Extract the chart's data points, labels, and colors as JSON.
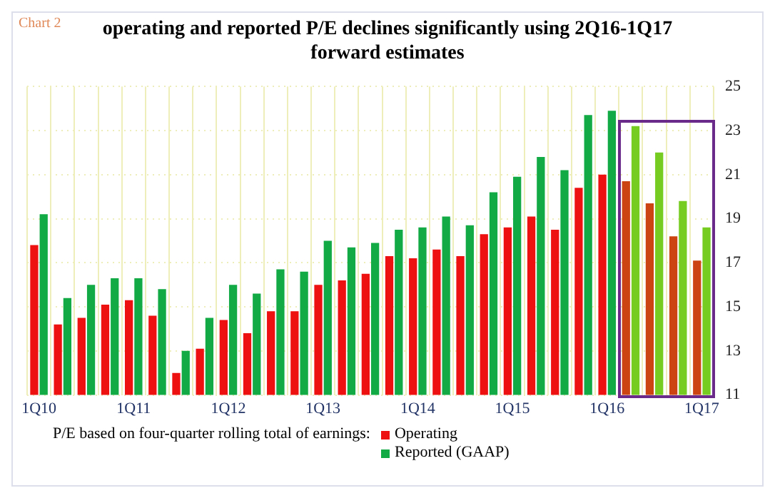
{
  "chart_data": {
    "type": "bar",
    "title": "operating and reported P/E declines significantly using 2Q16-1Q17 forward estimates",
    "annotations": [
      "Chart 2"
    ],
    "legend_title": "P/E based on four-quarter rolling total of earnings:",
    "categories": [
      "1Q10",
      null,
      null,
      null,
      "1Q11",
      null,
      null,
      null,
      "1Q12",
      null,
      null,
      null,
      "1Q13",
      null,
      null,
      null,
      "1Q14",
      null,
      null,
      null,
      "1Q15",
      null,
      null,
      null,
      "1Q16",
      null,
      null,
      null,
      "1Q17"
    ],
    "series": [
      {
        "name": "Operating",
        "color": "#ee1111",
        "colors": [
          "#ee1111",
          "#ee1111",
          "#ee1111",
          "#ee1111",
          "#ee1111",
          "#ee1111",
          "#ee1111",
          "#ee1111",
          "#ee1111",
          "#ee1111",
          "#ee1111",
          "#ee1111",
          "#ee1111",
          "#ee1111",
          "#ee1111",
          "#ee1111",
          "#ee1111",
          "#ee1111",
          "#ee1111",
          "#ee1111",
          "#ee1111",
          "#ee1111",
          "#ee1111",
          "#ee1111",
          "#ee1111",
          "#cc4411",
          "#cc4411",
          "#cc4411",
          "#cc4411"
        ],
        "values": [
          17.8,
          14.2,
          14.5,
          15.1,
          15.3,
          14.6,
          12.0,
          13.1,
          14.4,
          13.8,
          14.8,
          14.8,
          16.0,
          16.2,
          16.5,
          17.3,
          17.2,
          17.6,
          17.3,
          18.3,
          18.6,
          19.1,
          18.5,
          20.4,
          21.0,
          20.7,
          19.7,
          18.2,
          17.1
        ]
      },
      {
        "name": "Reported (GAAP)",
        "color": "#11aa44",
        "colors": [
          "#11aa44",
          "#11aa44",
          "#11aa44",
          "#11aa44",
          "#11aa44",
          "#11aa44",
          "#11aa44",
          "#11aa44",
          "#11aa44",
          "#11aa44",
          "#11aa44",
          "#11aa44",
          "#11aa44",
          "#11aa44",
          "#11aa44",
          "#11aa44",
          "#11aa44",
          "#11aa44",
          "#11aa44",
          "#11aa44",
          "#11aa44",
          "#11aa44",
          "#11aa44",
          "#11aa44",
          "#11aa44",
          "#77cc22",
          "#77cc22",
          "#77cc22",
          "#77cc22"
        ],
        "values": [
          19.2,
          15.4,
          16.0,
          16.3,
          16.3,
          15.8,
          13.0,
          14.5,
          16.0,
          15.6,
          16.7,
          16.6,
          18.0,
          17.7,
          17.9,
          18.5,
          18.6,
          19.1,
          18.7,
          20.2,
          20.9,
          21.8,
          21.2,
          23.7,
          23.9,
          23.2,
          22.0,
          19.8,
          18.6
        ]
      }
    ],
    "ylim": [
      11,
      25
    ],
    "yticks": [
      11,
      13,
      15,
      17,
      19,
      21,
      23,
      25
    ],
    "grid": true,
    "legend": "bottom"
  }
}
